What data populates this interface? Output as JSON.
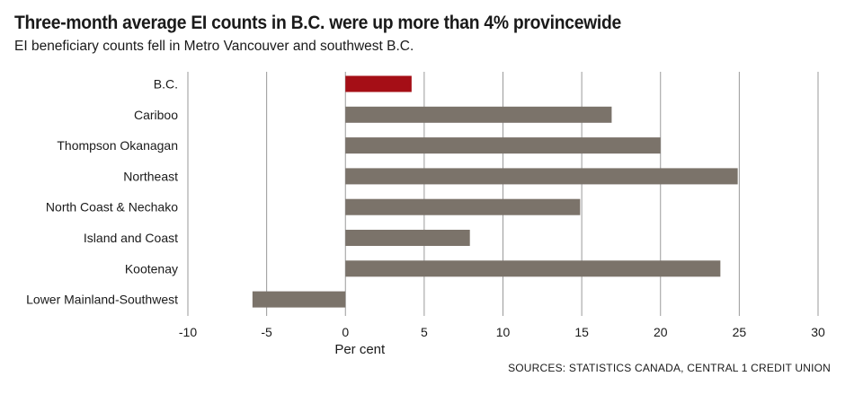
{
  "title": "Three-month average EI counts in B.C. were up more than 4% provincewide",
  "subtitle": "EI beneficiary counts fell in Metro Vancouver and southwest B.C.",
  "source": "SOURCES: STATISTICS CANADA, CENTRAL 1 CREDIT UNION",
  "colors": {
    "highlight": "#a50e16",
    "bar": "#7b736a",
    "grid": "#9a9a9a"
  },
  "chart_data": {
    "type": "bar",
    "orientation": "horizontal",
    "categories": [
      "B.C.",
      "Cariboo",
      "Thompson Okanagan",
      "Northeast",
      "North Coast & Nechako",
      "Island and Coast",
      "Kootenay",
      "Lower Mainland-Southwest"
    ],
    "values": [
      4.2,
      16.9,
      20.0,
      24.9,
      14.9,
      7.9,
      23.8,
      -5.9
    ],
    "highlight_category": "B.C.",
    "xlabel": "Per cent",
    "ylabel": "",
    "xlim": [
      -10,
      30
    ],
    "xticks": [
      -10,
      -5,
      0,
      5,
      10,
      15,
      20,
      25,
      30
    ],
    "grid": true
  }
}
